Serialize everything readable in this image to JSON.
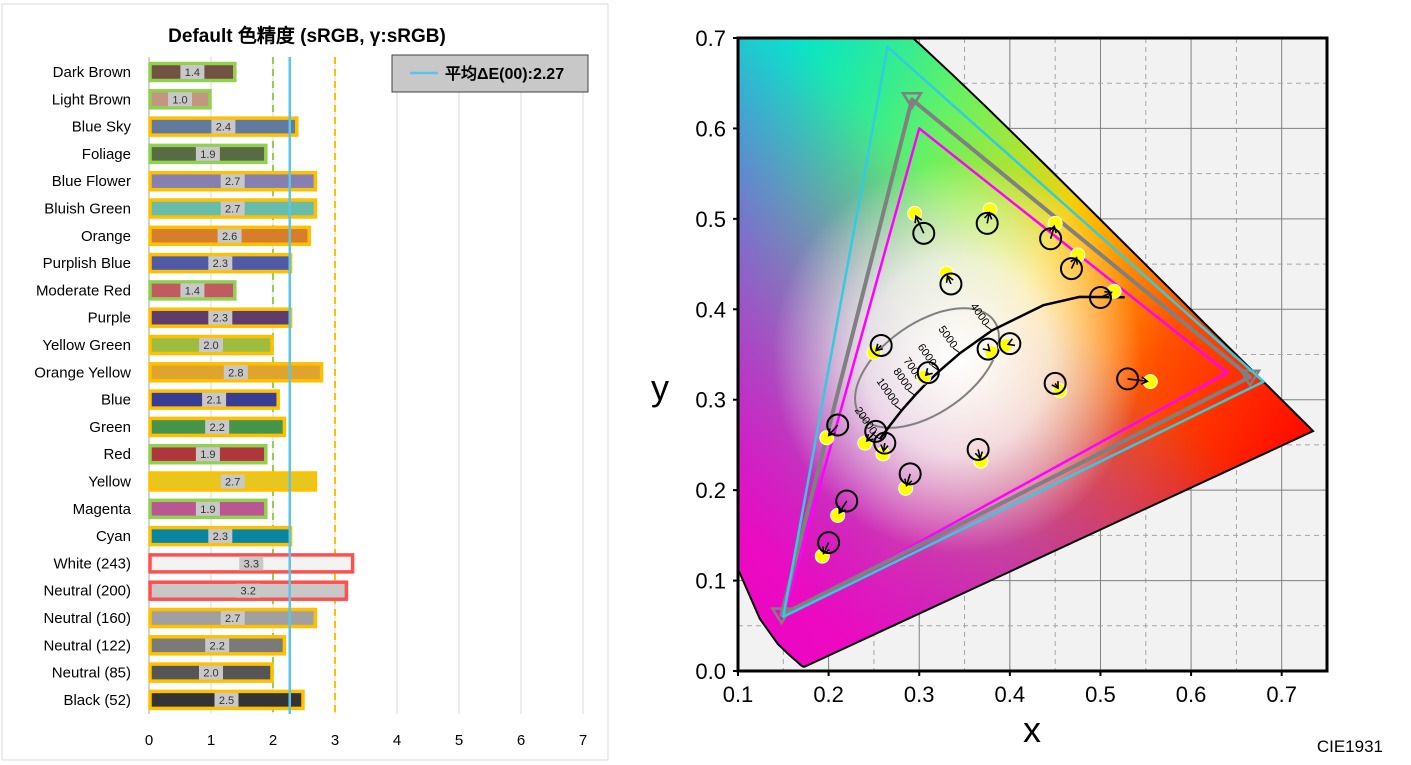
{
  "chart_data": [
    {
      "type": "bar",
      "title": "Default 色精度 (sRGB, γ:sRGB)",
      "legend": {
        "label": "平均ΔE(00):2.27",
        "placement": "top-right"
      },
      "mean_value": 2.27,
      "xlim": [
        0,
        7
      ],
      "x_ticks": [
        "0",
        "1",
        "2",
        "3",
        "4",
        "5",
        "6",
        "7"
      ],
      "reference_lines": [
        2,
        3
      ],
      "categories": [
        "Dark Brown",
        "Light Brown",
        "Blue Sky",
        "Foliage",
        "Blue Flower",
        "Bluish Green",
        "Orange",
        "Purplish Blue",
        "Moderate Red",
        "Purple",
        "Yellow Green",
        "Orange Yellow",
        "Blue",
        "Green",
        "Red",
        "Yellow",
        "Magenta",
        "Cyan",
        "White (243)",
        "Neutral (200)",
        "Neutral (160)",
        "Neutral (122)",
        "Neutral (85)",
        "Black (52)"
      ],
      "values": [
        1.4,
        1.0,
        2.4,
        1.9,
        2.7,
        2.7,
        2.6,
        2.3,
        1.4,
        2.3,
        2.0,
        2.8,
        2.1,
        2.2,
        1.9,
        2.7,
        1.9,
        2.3,
        3.3,
        3.2,
        2.7,
        2.2,
        2.0,
        2.5
      ],
      "value_labels": [
        "1.4",
        "1.0",
        "2.4",
        "1.9",
        "2.7",
        "2.7",
        "2.6",
        "2.3",
        "1.4",
        "2.3",
        "2.0",
        "2.8",
        "2.1",
        "2.2",
        "1.9",
        "2.7",
        "1.9",
        "2.3",
        "3.3",
        "3.2",
        "2.7",
        "2.2",
        "2.0",
        "2.5"
      ],
      "bar_colors": [
        "#735244",
        "#c29682",
        "#627a9d",
        "#576c43",
        "#8580b1",
        "#67bdaa",
        "#d67e2c",
        "#505ba6",
        "#c15a63",
        "#5e3c6c",
        "#9dbc40",
        "#e0a32e",
        "#383d96",
        "#469449",
        "#af363c",
        "#e7c71f",
        "#bb5695",
        "#0885a1",
        "#f3f3f2",
        "#c8c8c8",
        "#a0a0a0",
        "#7a7a79",
        "#555555",
        "#343434"
      ],
      "threshold_colors": {
        "low": "#92d050",
        "mid": "#ffc000",
        "high": "#ff5050"
      }
    },
    {
      "type": "scatter",
      "caption": "CIE1931",
      "xlabel": "x",
      "ylabel": "y",
      "xlim": [
        0.1,
        0.75
      ],
      "ylim": [
        0.0,
        0.7
      ],
      "x_ticks": [
        "0.1",
        "0.2",
        "0.3",
        "0.4",
        "0.5",
        "0.6",
        "0.7"
      ],
      "y_ticks": [
        "0.0",
        "0.1",
        "0.2",
        "0.3",
        "0.4",
        "0.5",
        "0.6",
        "0.7"
      ],
      "gamuts": [
        {
          "color": "#ff00ff",
          "points": [
            [
              0.64,
              0.33
            ],
            [
              0.3,
              0.6
            ],
            [
              0.15,
              0.06
            ]
          ]
        },
        {
          "color": "#808080",
          "points": [
            [
              0.665,
              0.325
            ],
            [
              0.292,
              0.632
            ],
            [
              0.148,
              0.062
            ]
          ]
        },
        {
          "color": "#33ccdd",
          "points": [
            [
              0.68,
              0.32
            ],
            [
              0.265,
              0.69
            ],
            [
              0.15,
              0.06
            ]
          ]
        }
      ],
      "cct_labels": [
        "4000",
        "5000",
        "6000",
        "7000",
        "8000",
        "10000",
        "20000"
      ],
      "targets": [
        [
          0.295,
          0.506
        ],
        [
          0.378,
          0.51
        ],
        [
          0.45,
          0.495
        ],
        [
          0.475,
          0.46
        ],
        [
          0.515,
          0.42
        ],
        [
          0.33,
          0.44
        ],
        [
          0.25,
          0.352
        ],
        [
          0.305,
          0.325
        ],
        [
          0.38,
          0.352
        ],
        [
          0.395,
          0.36
        ],
        [
          0.455,
          0.31
        ],
        [
          0.555,
          0.32
        ],
        [
          0.198,
          0.258
        ],
        [
          0.24,
          0.252
        ],
        [
          0.26,
          0.24
        ],
        [
          0.285,
          0.202
        ],
        [
          0.368,
          0.232
        ],
        [
          0.21,
          0.172
        ],
        [
          0.193,
          0.127
        ]
      ],
      "measured": [
        [
          0.305,
          0.484
        ],
        [
          0.375,
          0.495
        ],
        [
          0.445,
          0.478
        ],
        [
          0.468,
          0.445
        ],
        [
          0.5,
          0.413
        ],
        [
          0.335,
          0.428
        ],
        [
          0.258,
          0.36
        ],
        [
          0.31,
          0.33
        ],
        [
          0.376,
          0.356
        ],
        [
          0.4,
          0.362
        ],
        [
          0.45,
          0.318
        ],
        [
          0.53,
          0.323
        ],
        [
          0.21,
          0.272
        ],
        [
          0.252,
          0.265
        ],
        [
          0.262,
          0.252
        ],
        [
          0.29,
          0.218
        ],
        [
          0.365,
          0.245
        ],
        [
          0.22,
          0.188
        ],
        [
          0.2,
          0.142
        ]
      ]
    }
  ]
}
